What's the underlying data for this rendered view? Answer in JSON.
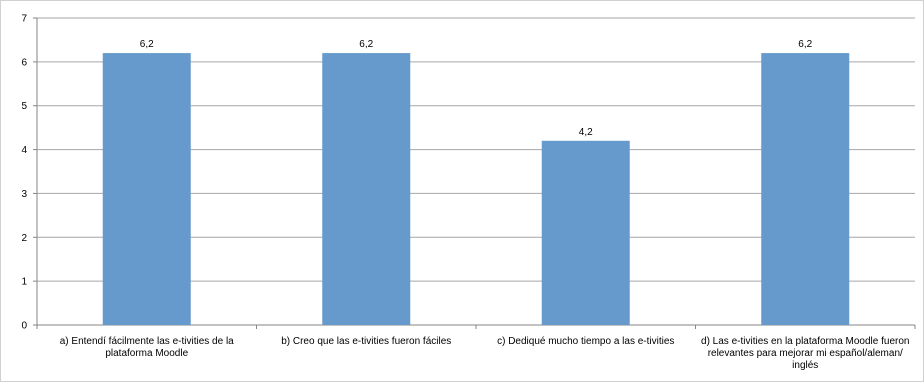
{
  "chart_data": {
    "type": "bar",
    "categories": [
      "a) Entendí fácilmente las e-tivities de la plataforma Moodle",
      "b) Creo que las e-tivities fueron fáciles",
      "c) Dediqué mucho tiempo a las e-tivities",
      "d) Las e-tivities en la plataforma Moodle fueron relevantes para mejorar mi español/aleman/ inglés"
    ],
    "values": [
      6.2,
      6.2,
      4.2,
      6.2
    ],
    "data_labels": [
      "6,2",
      "6,2",
      "4,2",
      "6,2"
    ],
    "title": "",
    "xlabel": "",
    "ylabel": "",
    "ylim": [
      0,
      7
    ],
    "yticks": [
      "0",
      "1",
      "2",
      "3",
      "4",
      "5",
      "6",
      "7"
    ],
    "grid": true,
    "legend": "none",
    "bar_color": "#6699cc",
    "grid_color": "#a6a6a6"
  }
}
